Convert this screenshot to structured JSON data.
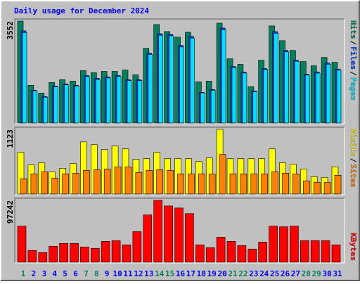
{
  "title": "Daily usage for December 2024",
  "legend_separator": "/",
  "chart_data": [
    {
      "type": "bar",
      "ylim": [
        0,
        3552
      ],
      "yticks": [
        3552
      ],
      "series": [
        {
          "name": "Hits",
          "color": "#00805C",
          "values": [
            3552,
            1314,
            1046,
            1411,
            1508,
            1460,
            1825,
            1752,
            1800,
            1800,
            1849,
            1679,
            2603,
            3431,
            3187,
            2993,
            3163,
            1435,
            1460,
            3479,
            2238,
            2044,
            1265,
            2190,
            3382,
            2871,
            2530,
            2141,
            1995,
            2287,
            2117
          ]
        },
        {
          "name": "Files",
          "color": "#0040FF",
          "values": [
            3212,
            1144,
            924,
            1290,
            1363,
            1314,
            1654,
            1557,
            1606,
            1654,
            1508,
            1508,
            2433,
            3114,
            3090,
            2701,
            3017,
            1071,
            1168,
            3309,
            1971,
            1776,
            1119,
            1898,
            3187,
            2530,
            2190,
            1703,
            1776,
            2092,
            1873
          ]
        },
        {
          "name": "Pages",
          "color": "#00E0FF",
          "values": [
            3150,
            1120,
            900,
            1260,
            1330,
            1290,
            1620,
            1520,
            1570,
            1620,
            1480,
            1480,
            2390,
            3060,
            3040,
            2650,
            2960,
            1050,
            1140,
            3250,
            1930,
            1740,
            1090,
            1860,
            3130,
            2480,
            2150,
            1670,
            1740,
            2050,
            1840
          ]
        }
      ]
    },
    {
      "type": "bar",
      "ylim": [
        0,
        1123
      ],
      "yticks": [
        1123
      ],
      "series": [
        {
          "name": "Visits",
          "color": "#FFFF00",
          "values": [
            724,
            507,
            543,
            386,
            447,
            531,
            905,
            857,
            772,
            833,
            784,
            603,
            615,
            724,
            615,
            615,
            615,
            567,
            627,
            1123,
            615,
            615,
            615,
            615,
            784,
            543,
            519,
            434,
            302,
            290,
            471
          ]
        },
        {
          "name": "Sites",
          "color": "#FF8000",
          "values": [
            266,
            350,
            386,
            278,
            350,
            362,
            410,
            422,
            434,
            471,
            471,
            374,
            410,
            422,
            410,
            350,
            350,
            350,
            350,
            688,
            350,
            350,
            350,
            350,
            386,
            362,
            350,
            229,
            205,
            205,
            326
          ]
        }
      ]
    },
    {
      "type": "bar",
      "ylim": [
        0,
        97242
      ],
      "yticks": [
        97242
      ],
      "categories": [
        "1",
        "2",
        "3",
        "4",
        "5",
        "6",
        "7",
        "8",
        "9",
        "10",
        "11",
        "12",
        "13",
        "14",
        "15",
        "16",
        "17",
        "18",
        "19",
        "20",
        "21",
        "22",
        "23",
        "24",
        "25",
        "26",
        "27",
        "28",
        "29",
        "30",
        "31"
      ],
      "category_color": "#00805C",
      "weekend_color": "#00805C",
      "weekday_color": "#0000FF",
      "weekend": [
        0,
        6,
        7,
        13,
        14,
        20,
        21,
        27,
        28
      ],
      "series": [
        {
          "name": "KBytes",
          "color": "#FF0000",
          "values": [
            56815,
            18574,
            15296,
            25130,
            29500,
            29500,
            24037,
            21852,
            32778,
            33871,
            27315,
            48074,
            74297,
            97242,
            88501,
            85223,
            76482,
            27315,
            22945,
            39334,
            32778,
            26222,
            20759,
            31685,
            56815,
            55722,
            56815,
            33871,
            33871,
            33871,
            27315
          ]
        }
      ]
    }
  ]
}
